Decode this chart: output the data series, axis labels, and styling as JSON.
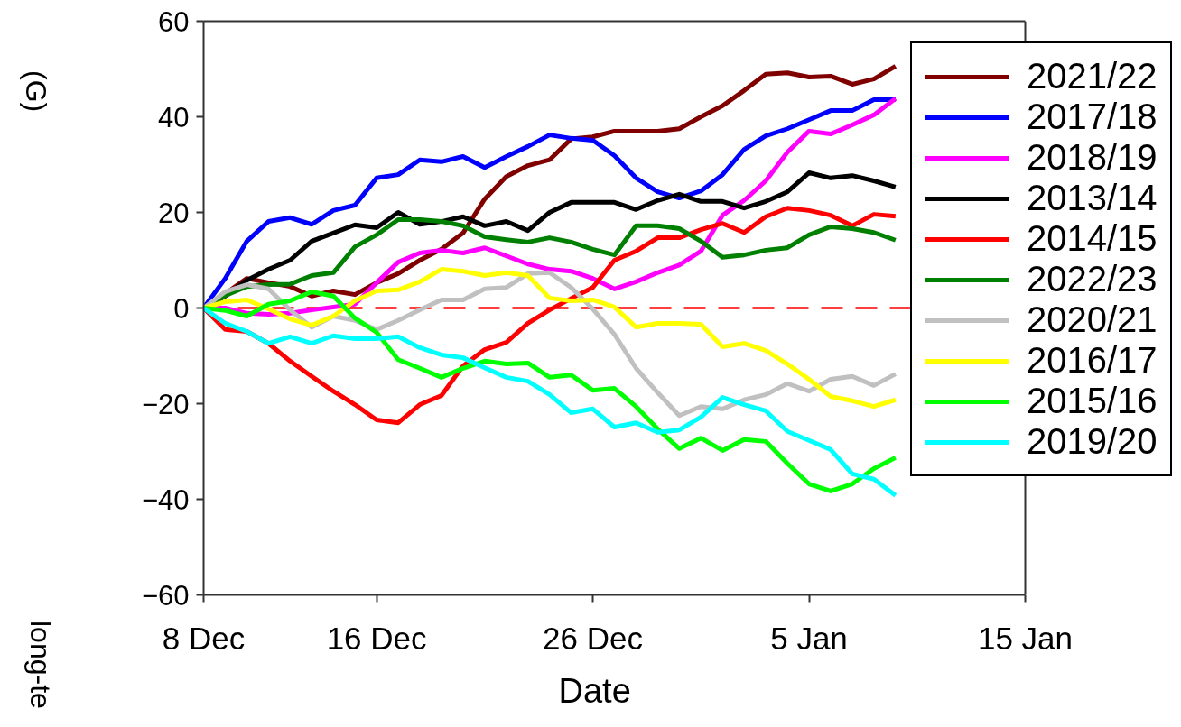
{
  "chart_data": {
    "type": "line",
    "xlabel": "Date",
    "ylabel": "(G)",
    "annotations": [
      "long-te"
    ],
    "x": [
      "2022-12-08",
      "2022-12-09",
      "2022-12-10",
      "2022-12-11",
      "2022-12-12",
      "2022-12-13",
      "2022-12-14",
      "2022-12-15",
      "2022-12-16",
      "2022-12-17",
      "2022-12-18",
      "2022-12-19",
      "2022-12-20",
      "2022-12-21",
      "2022-12-22",
      "2022-12-23",
      "2022-12-24",
      "2022-12-25",
      "2022-12-26",
      "2022-12-27",
      "2022-12-28",
      "2022-12-29",
      "2022-12-30",
      "2022-12-31",
      "2023-01-01",
      "2023-01-02",
      "2023-01-03",
      "2023-01-04",
      "2023-01-05",
      "2023-01-06",
      "2023-01-07",
      "2023-01-08",
      "2023-01-09"
    ],
    "xlim": [
      "2022-12-08",
      "2023-01-15"
    ],
    "xticks": [
      {
        "value": "2022-12-08",
        "label": "8 Dec"
      },
      {
        "value": "2022-12-16",
        "label": "16 Dec"
      },
      {
        "value": "2022-12-26",
        "label": "26 Dec"
      },
      {
        "value": "2023-01-05",
        "label": "5 Jan"
      },
      {
        "value": "2023-01-15",
        "label": "15 Jan"
      }
    ],
    "ylim": [
      -60,
      60
    ],
    "yticks": [
      -60,
      -40,
      -20,
      0,
      20,
      40,
      60
    ],
    "grid": false,
    "legend": "top right",
    "ref_lines": [
      {
        "axis": "y",
        "value": 0,
        "color": "#ff0000",
        "line_style": "dashed"
      }
    ],
    "series": [
      {
        "name": "2021/22",
        "color": "#800000",
        "values": [
          0,
          3,
          6.2,
          5.3,
          4.5,
          2.5,
          3.6,
          2.8,
          5.3,
          7.2,
          10,
          12.3,
          15.7,
          22.8,
          27.5,
          29.8,
          31,
          35.4,
          35.8,
          37,
          37,
          37,
          37.5,
          40,
          42.3,
          45.5,
          48.9,
          49.2,
          48.3,
          48.5,
          46.8,
          47.9,
          50.6
        ]
      },
      {
        "name": "2017/18",
        "color": "#0000ff",
        "values": [
          0,
          6.2,
          14,
          18.1,
          18.9,
          17.5,
          20.4,
          21.5,
          27.2,
          27.9,
          31,
          30.6,
          31.7,
          29.4,
          31.7,
          33.8,
          36.2,
          35.5,
          35.1,
          31.9,
          27.2,
          24.3,
          23,
          24.5,
          27.9,
          33.2,
          36,
          37.5,
          39.4,
          41.3,
          41.3,
          43.6,
          43.6
        ]
      },
      {
        "name": "2018/19",
        "color": "#ff00ff",
        "values": [
          0,
          0,
          -1.1,
          -1.3,
          -1.1,
          -0.4,
          0.2,
          0.8,
          5.3,
          9.6,
          11.5,
          12.1,
          11.5,
          12.6,
          10.9,
          9.2,
          8.1,
          7.7,
          6.2,
          4,
          5.5,
          7.4,
          9,
          11.9,
          19.4,
          22.5,
          26.6,
          32.6,
          37,
          36.4,
          38.3,
          40.4,
          43.8
        ]
      },
      {
        "name": "2013/14",
        "color": "#000000",
        "values": [
          0,
          2.5,
          5.8,
          8.1,
          10,
          14,
          15.7,
          17.4,
          16.8,
          20,
          17.5,
          18.1,
          19.1,
          17.2,
          18.1,
          16.2,
          20,
          22.1,
          22.1,
          22.1,
          20.6,
          22.5,
          23.8,
          22.3,
          22.3,
          20.9,
          22.3,
          24.3,
          28.3,
          27.2,
          27.7,
          26.6,
          25.3
        ]
      },
      {
        "name": "2014/15",
        "color": "#ff0000",
        "values": [
          0,
          -4.5,
          -4.9,
          -7.4,
          -11.1,
          -14.3,
          -17.4,
          -20.2,
          -23.4,
          -24,
          -20.2,
          -18.3,
          -12.1,
          -8.7,
          -7.2,
          -3.2,
          -0.4,
          2,
          4.3,
          10,
          11.9,
          14.7,
          14.7,
          16.4,
          17.7,
          15.8,
          19.1,
          20.9,
          20.4,
          19.4,
          17.2,
          19.6,
          19.2
        ]
      },
      {
        "name": "2022/23",
        "color": "#008000",
        "values": [
          0,
          2.6,
          4.5,
          4.9,
          5,
          6.8,
          7.4,
          12.8,
          15.3,
          18.5,
          18.5,
          18.1,
          17.2,
          14.9,
          14.3,
          13.8,
          14.7,
          13.8,
          12.3,
          11.1,
          17.2,
          17.2,
          16.6,
          14,
          10.6,
          11.1,
          12.1,
          12.6,
          15.3,
          17,
          16.6,
          15.8,
          14.2
        ]
      },
      {
        "name": "2020/21",
        "color": "#c0c0c0",
        "values": [
          0,
          3.4,
          4.9,
          4,
          -0.4,
          -4,
          -1.7,
          -2.6,
          -4.5,
          -2.6,
          -0.4,
          1.7,
          1.7,
          4,
          4.3,
          7.2,
          7.4,
          4.3,
          -0.2,
          -5.5,
          -12.6,
          -17.7,
          -22.5,
          -20.6,
          -21.1,
          -19.2,
          -18.1,
          -15.8,
          -17.4,
          -14.9,
          -14.3,
          -16.2,
          -13.8
        ]
      },
      {
        "name": "2016/17",
        "color": "#ffff00",
        "values": [
          0,
          1.3,
          1.7,
          -0.2,
          -2.3,
          -3.6,
          -1.7,
          1.5,
          3.6,
          3.8,
          5.5,
          8.1,
          7.7,
          6.8,
          7.4,
          6.8,
          2.1,
          1.5,
          1.7,
          0.2,
          -4,
          -3.2,
          -3.2,
          -3.4,
          -8.1,
          -7.4,
          -8.9,
          -11.7,
          -14.9,
          -18.5,
          -19.4,
          -20.6,
          -19.2
        ]
      },
      {
        "name": "2015/16",
        "color": "#00ff00",
        "values": [
          0,
          -0.5,
          -1.7,
          0.8,
          1.5,
          3.4,
          2.5,
          -2.1,
          -5.1,
          -10.8,
          -12.6,
          -14.5,
          -12.6,
          -11.1,
          -11.7,
          -11.5,
          -14.5,
          -14,
          -17.2,
          -16.8,
          -20.6,
          -25.3,
          -29.4,
          -27.2,
          -29.8,
          -27.5,
          -27.9,
          -32.5,
          -36.8,
          -38.3,
          -36.8,
          -33.6,
          -31.3
        ]
      },
      {
        "name": "2019/20",
        "color": "#00ffff",
        "values": [
          0,
          -3.2,
          -4.9,
          -7.4,
          -6,
          -7.4,
          -5.8,
          -6.4,
          -6.4,
          -6,
          -8.3,
          -9.8,
          -10.4,
          -12.5,
          -14.5,
          -15.3,
          -18.1,
          -21.9,
          -21.1,
          -24.9,
          -24,
          -26,
          -25.5,
          -22.8,
          -18.7,
          -20.2,
          -21.5,
          -25.8,
          -27.7,
          -29.6,
          -34.7,
          -35.8,
          -39.2
        ]
      }
    ]
  }
}
